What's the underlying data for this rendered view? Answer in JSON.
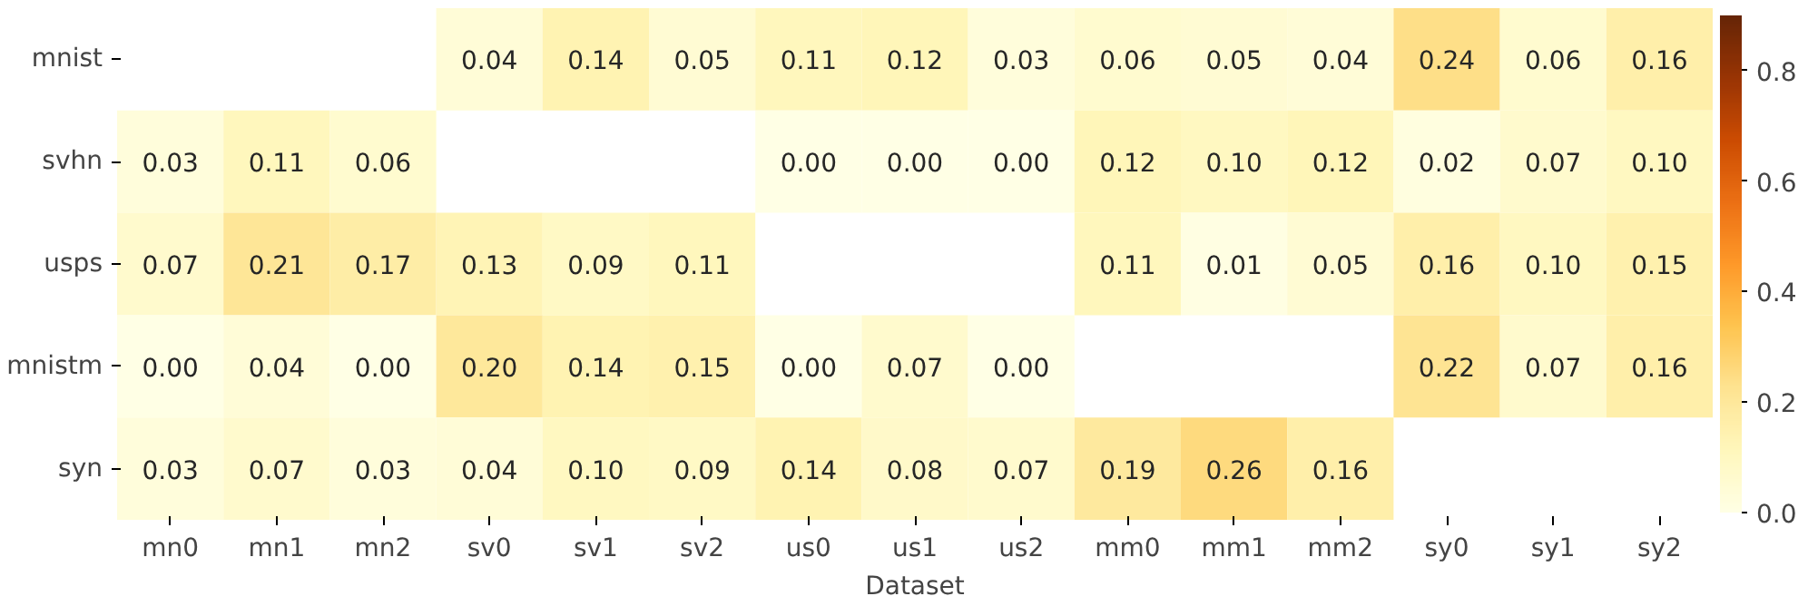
{
  "chart_data": {
    "type": "heatmap",
    "xlabel": "Dataset",
    "categories": [
      "mn0",
      "mn1",
      "mn2",
      "sv0",
      "sv1",
      "sv2",
      "us0",
      "us1",
      "us2",
      "mm0",
      "mm1",
      "mm2",
      "sy0",
      "sy1",
      "sy2"
    ],
    "y_categories": [
      "mnist",
      "svhn",
      "usps",
      "mnistm",
      "syn"
    ],
    "cells": [
      [
        null,
        null,
        null,
        0.04,
        0.14,
        0.05,
        0.11,
        0.12,
        0.03,
        0.06,
        0.05,
        0.04,
        0.24,
        0.06,
        0.16
      ],
      [
        0.03,
        0.11,
        0.06,
        null,
        null,
        null,
        0.0,
        0.0,
        0.0,
        0.12,
        0.1,
        0.12,
        0.02,
        0.07,
        0.1
      ],
      [
        0.07,
        0.21,
        0.17,
        0.13,
        0.09,
        0.11,
        null,
        null,
        null,
        0.11,
        0.01,
        0.05,
        0.16,
        0.1,
        0.15
      ],
      [
        0.0,
        0.04,
        0.0,
        0.2,
        0.14,
        0.15,
        0.0,
        0.07,
        0.0,
        null,
        null,
        null,
        0.22,
        0.07,
        0.16
      ],
      [
        0.03,
        0.07,
        0.03,
        0.04,
        0.1,
        0.09,
        0.14,
        0.08,
        0.07,
        0.19,
        0.26,
        0.16,
        null,
        null,
        null
      ]
    ],
    "cell_labels": [
      [
        null,
        null,
        null,
        "0.04",
        "0.14",
        "0.05",
        "0.11",
        "0.12",
        "0.03",
        "0.06",
        "0.05",
        "0.04",
        "0.24",
        "0.06",
        "0.16"
      ],
      [
        "0.03",
        "0.11",
        "0.06",
        null,
        null,
        null,
        "0.00",
        "0.00",
        "0.00",
        "0.12",
        "0.10",
        "0.12",
        "0.02",
        "0.07",
        "0.10"
      ],
      [
        "0.07",
        "0.21",
        "0.17",
        "0.13",
        "0.09",
        "0.11",
        null,
        null,
        null,
        "0.11",
        "0.01",
        "0.05",
        "0.16",
        "0.10",
        "0.15"
      ],
      [
        "0.00",
        "0.04",
        "0.00",
        "0.20",
        "0.14",
        "0.15",
        "0.00",
        "0.07",
        "0.00",
        null,
        null,
        null,
        "0.22",
        "0.07",
        "0.16"
      ],
      [
        "0.03",
        "0.07",
        "0.03",
        "0.04",
        "0.10",
        "0.09",
        "0.14",
        "0.08",
        "0.07",
        "0.19",
        "0.26",
        "0.16",
        null,
        null,
        null
      ]
    ],
    "clim": [
      0,
      0.9
    ],
    "cticks": [
      {
        "value": 0,
        "label": "0.0"
      },
      {
        "value": 0.2,
        "label": "0.2"
      },
      {
        "value": 0.4,
        "label": "0.4"
      },
      {
        "value": 0.6,
        "label": "0.6"
      },
      {
        "value": 0.8,
        "label": "0.8"
      }
    ]
  }
}
